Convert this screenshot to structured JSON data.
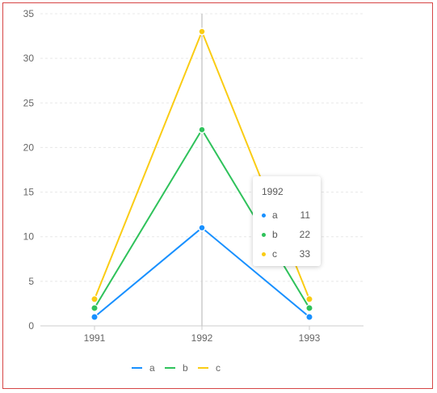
{
  "chart_data": {
    "type": "line",
    "categories": [
      "1991",
      "1992",
      "1993"
    ],
    "series": [
      {
        "name": "a",
        "color": "#1890ff",
        "values": [
          1,
          11,
          1
        ]
      },
      {
        "name": "b",
        "color": "#2fc25b",
        "values": [
          2,
          22,
          2
        ]
      },
      {
        "name": "c",
        "color": "#facc14",
        "values": [
          3,
          33,
          3
        ]
      }
    ],
    "title": "",
    "xlabel": "",
    "ylabel": "",
    "ylim": [
      0,
      35
    ],
    "yticks": [
      "0",
      "5",
      "10",
      "15",
      "20",
      "25",
      "30",
      "35"
    ],
    "grid": true,
    "legend_position": "bottom",
    "crosshair_category": "1992"
  },
  "tooltip": {
    "title": "1992",
    "rows": [
      {
        "name": "a",
        "value": "11",
        "color": "#1890ff"
      },
      {
        "name": "b",
        "value": "22",
        "color": "#2fc25b"
      },
      {
        "name": "c",
        "value": "33",
        "color": "#facc14"
      }
    ]
  },
  "colors": {
    "border": "#d64545",
    "grid": "#e8e8e8",
    "axis": "#cccccc",
    "crosshair": "#cccccc"
  }
}
